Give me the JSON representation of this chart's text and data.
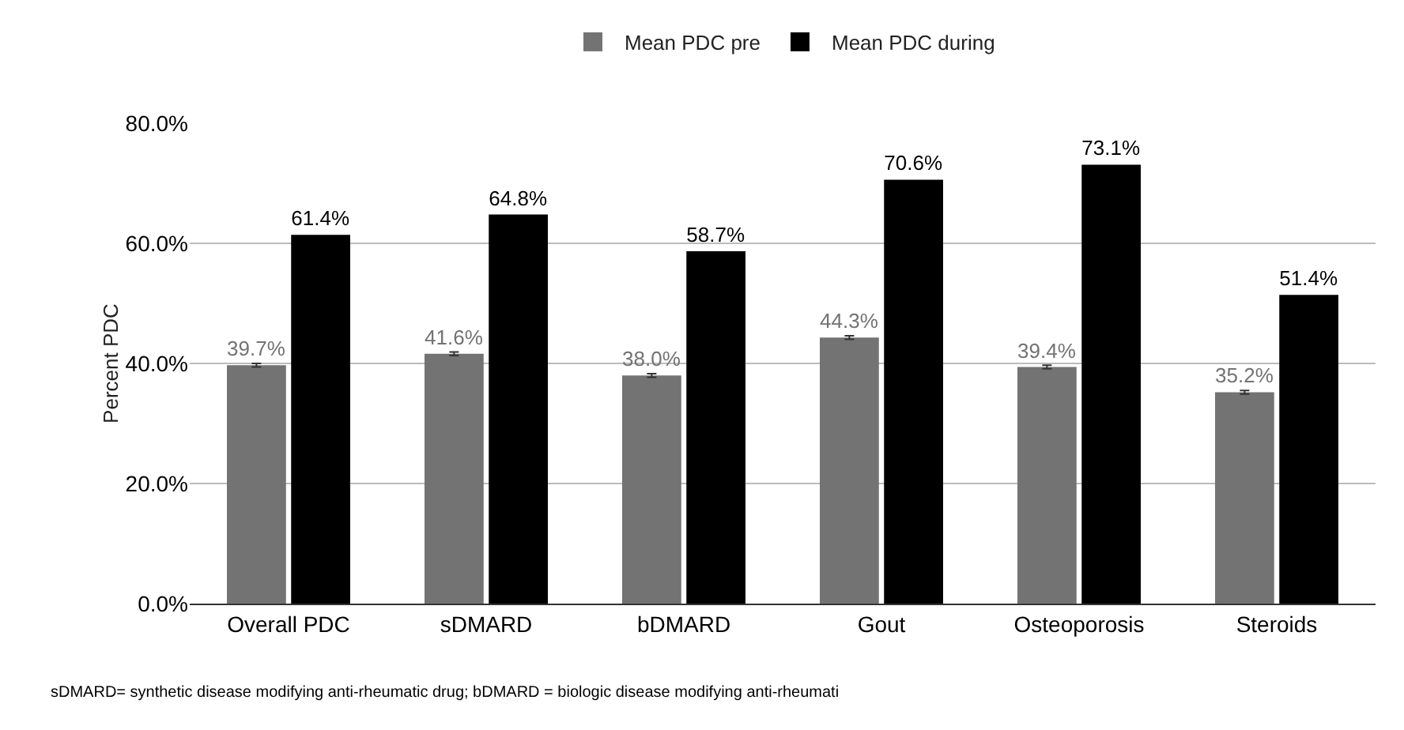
{
  "chart_data": {
    "type": "bar",
    "ylabel": "Percent PDC",
    "categories": [
      "Overall PDC",
      "sDMARD",
      "bDMARD",
      "Gout",
      "Osteoporosis",
      "Steroids"
    ],
    "series": [
      {
        "name": "Mean PDC pre",
        "color": "#737373",
        "values": [
          39.7,
          41.6,
          38.0,
          44.3,
          39.4,
          35.2
        ],
        "errors": [
          0.3,
          0.3,
          0.3,
          0.3,
          0.3,
          0.3
        ],
        "value_labels": [
          "39.7%",
          "41.6%",
          "38.0%",
          "44.3%",
          "39.4%",
          "35.2%"
        ]
      },
      {
        "name": "Mean PDC during",
        "color": "#000000",
        "values": [
          61.4,
          64.8,
          58.7,
          70.6,
          73.1,
          51.4
        ],
        "value_labels": [
          "61.4%",
          "64.8%",
          "58.7%",
          "70.6%",
          "73.1%",
          "51.4%"
        ]
      }
    ],
    "ylim": [
      0,
      80
    ],
    "yticks": [
      {
        "value": 0,
        "label": "0.0%"
      },
      {
        "value": 20,
        "label": "20.0%"
      },
      {
        "value": 40,
        "label": "40.0%"
      },
      {
        "value": 60,
        "label": "60.0%"
      },
      {
        "value": 80,
        "label": "80.0%"
      }
    ],
    "grid": "y",
    "legend": "top",
    "annotations": [
      "sDMARD= synthetic disease modifying anti-rheumatic drug; bDMARD = biologic disease modifying anti-rheumati"
    ]
  }
}
